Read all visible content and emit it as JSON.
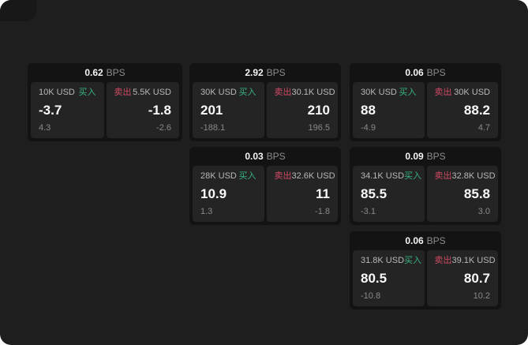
{
  "labels": {
    "bps_unit": "BPS",
    "buy": "买入",
    "sell": "卖出"
  },
  "colors": {
    "page_background": "#1e1e1e",
    "card_background": "#131313",
    "panel_background": "#242424",
    "buy_green": "#36b37e",
    "sell_red": "#cf4a63",
    "value_white": "#fafafa",
    "muted_gray": "#8a8a8a"
  },
  "cards": [
    {
      "bps": "0.62",
      "buy": {
        "size": "10K USD",
        "value": "-3.7",
        "change": "4.3"
      },
      "sell": {
        "size": "5.5K USD",
        "value": "-1.8",
        "change": "-2.6"
      }
    },
    {
      "bps": "2.92",
      "buy": {
        "size": "30K USD",
        "value": "201",
        "change": "-188.1"
      },
      "sell": {
        "size": "30.1K USD",
        "value": "210",
        "change": "196.5"
      }
    },
    {
      "bps": "0.06",
      "buy": {
        "size": "30K USD",
        "value": "88",
        "change": "-4.9"
      },
      "sell": {
        "size": "30K USD",
        "value": "88.2",
        "change": "4.7"
      }
    },
    {
      "bps": "0.03",
      "buy": {
        "size": "28K USD",
        "value": "10.9",
        "change": "1.3"
      },
      "sell": {
        "size": "32.6K USD",
        "value": "11",
        "change": "-1.8"
      }
    },
    {
      "bps": "0.09",
      "buy": {
        "size": "34.1K USD",
        "value": "85.5",
        "change": "-3.1"
      },
      "sell": {
        "size": "32.8K USD",
        "value": "85.8",
        "change": "3.0"
      }
    },
    {
      "bps": "0.06",
      "buy": {
        "size": "31.8K USD",
        "value": "80.5",
        "change": "-10.8"
      },
      "sell": {
        "size": "39.1K USD",
        "value": "80.7",
        "change": "10.2"
      }
    }
  ]
}
